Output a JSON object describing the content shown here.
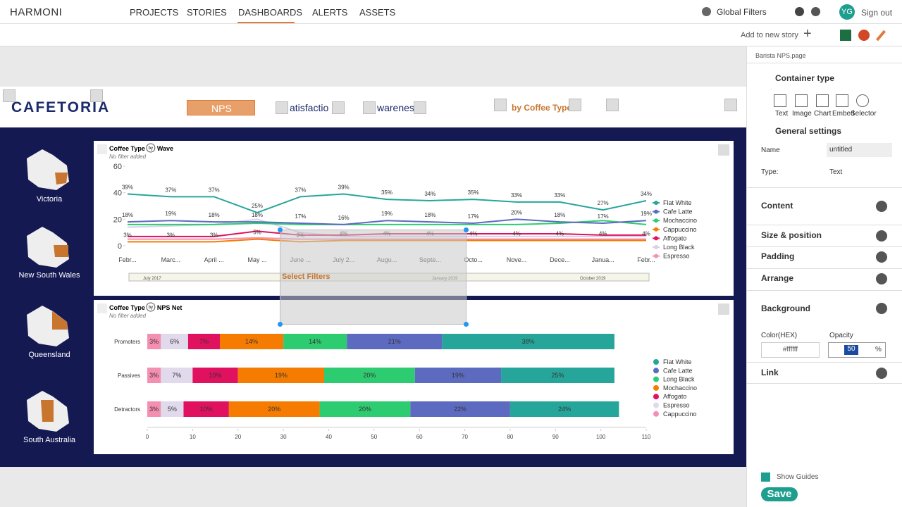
{
  "nav": {
    "brand": "HARMONI",
    "items": [
      "PROJECTS",
      "STORIES",
      "DASHBOARDS",
      "ALERTS",
      "ASSETS"
    ],
    "global_filters": "Global Filters",
    "avatar": "YG",
    "sign_out": "Sign out"
  },
  "toolbar": {
    "add_to_story": "Add to new story"
  },
  "canvas": {
    "logo": "CAFETORIA",
    "tabs": [
      "NPS",
      "atisfactio",
      "warenes",
      "by Coffee Type"
    ],
    "regions": [
      "Victoria",
      "New South Wales",
      "Queensland",
      "South Australia"
    ],
    "select_filters": "Select Filters"
  },
  "panel": {
    "file": "Barista NPS.page",
    "container_type": "Container type",
    "types": [
      "Text",
      "Image",
      "Chart",
      "Embed",
      "Selector"
    ],
    "general_settings": "General settings",
    "name_label": "Name",
    "name_value": "untitled",
    "type_label": "Type:",
    "type_value": "Text",
    "sections": [
      "Content",
      "Size & position",
      "Padding",
      "Arrange",
      "Background"
    ],
    "color_label": "Color(HEX)",
    "color_value": "#ffffff",
    "opacity_label": "Opacity",
    "opacity_value": "50",
    "opacity_unit": "%",
    "link": "Link",
    "show_guides": "Show Guides",
    "save": "Save"
  },
  "chart_data": [
    {
      "type": "line",
      "title": "Coffee Type",
      "title_by": "by",
      "title_measure": "Wave",
      "subtitle": "No filter added",
      "categories": [
        "Febr...",
        "Marc...",
        "April ...",
        "May ...",
        "June ...",
        "July 2...",
        "Augu...",
        "Septe...",
        "Octo...",
        "Nove...",
        "Dece...",
        "Janua...",
        "Febr..."
      ],
      "ylim": [
        0,
        60
      ],
      "yticks": [
        0,
        20,
        40,
        60
      ],
      "series": [
        {
          "name": "Flat White",
          "color": "#26a69a",
          "values": [
            39,
            37,
            37,
            25,
            37,
            39,
            35,
            34,
            35,
            33,
            33,
            27,
            34
          ],
          "value_labels": [
            "39%",
            "37%",
            "37%",
            "25%",
            "37%",
            "39%",
            "35%",
            "34%",
            "35%",
            "33%",
            "33%",
            "27%",
            "34%"
          ]
        },
        {
          "name": "Cafe Latte",
          "color": "#5c6bc0",
          "values": [
            18,
            19,
            18,
            18,
            17,
            16,
            19,
            18,
            17,
            20,
            18,
            17,
            19
          ],
          "value_labels": [
            "18%",
            "19%",
            "18%",
            "18%",
            "17%",
            "16%",
            "19%",
            "18%",
            "17%",
            "20%",
            "18%",
            "17%",
            "19%"
          ]
        },
        {
          "name": "Mochaccino",
          "color": "#2ecc71",
          "values": [
            16,
            16,
            16,
            17,
            16,
            16,
            16,
            16,
            16,
            16,
            17,
            19,
            16
          ]
        },
        {
          "name": "Cappuccino",
          "color": "#f57c00",
          "values": [
            3,
            3,
            3,
            5,
            3,
            4,
            4,
            4,
            4,
            4,
            4,
            4,
            4
          ],
          "value_labels": [
            "3%",
            "3%",
            "3%",
            "5%",
            "3%",
            "4%",
            "4%",
            "4%",
            "4%",
            "4%",
            "4%",
            "4%",
            "4%"
          ]
        },
        {
          "name": "Affogato",
          "color": "#e0115f",
          "values": [
            7,
            7,
            7,
            11,
            8,
            8,
            9,
            9,
            9,
            9,
            9,
            8,
            8
          ]
        },
        {
          "name": "Long Black",
          "color": "#d8d0e8",
          "values": [
            14,
            15,
            16,
            20,
            10,
            7,
            7,
            7,
            7,
            7,
            7,
            7,
            7
          ]
        },
        {
          "name": "Espresso",
          "color": "#f48fb1",
          "values": [
            5,
            5,
            5,
            6,
            5,
            5,
            5,
            5,
            5,
            5,
            5,
            5,
            5
          ]
        }
      ],
      "slider_labels": [
        "July 2017",
        "January 2019",
        "October 2019"
      ]
    },
    {
      "type": "stacked-bar-horizontal",
      "title": "Coffee Type",
      "title_by": "by",
      "title_measure": "NPS Net",
      "subtitle": "No filter added",
      "categories": [
        "Promoters",
        "Passives",
        "Detractors"
      ],
      "xlim": [
        0,
        110
      ],
      "xticks": [
        0,
        10,
        20,
        30,
        40,
        50,
        60,
        70,
        80,
        90,
        100,
        110
      ],
      "series": [
        {
          "name": "Cappuccino",
          "color": "#f48fb1",
          "values": [
            3,
            3,
            3
          ],
          "value_labels": [
            "3%",
            "3%",
            "3%"
          ]
        },
        {
          "name": "Espresso",
          "color": "#e1d9ec",
          "values": [
            6,
            7,
            5
          ],
          "value_labels": [
            "6%",
            "7%",
            "5%"
          ]
        },
        {
          "name": "Affogato",
          "color": "#e0115f",
          "values": [
            7,
            10,
            10
          ],
          "value_labels": [
            "7%",
            "10%",
            "10%"
          ]
        },
        {
          "name": "Mochaccino",
          "color": "#f57c00",
          "values": [
            14,
            19,
            20
          ],
          "value_labels": [
            "14%",
            "19%",
            "20%"
          ]
        },
        {
          "name": "Long Black",
          "color": "#2ecc71",
          "values": [
            14,
            20,
            20
          ],
          "value_labels": [
            "14%",
            "20%",
            "20%"
          ]
        },
        {
          "name": "Cafe Latte",
          "color": "#5c6bc0",
          "values": [
            21,
            19,
            22
          ],
          "value_labels": [
            "21%",
            "19%",
            "22%"
          ]
        },
        {
          "name": "Flat White",
          "color": "#26a69a",
          "values": [
            38,
            25,
            24
          ],
          "value_labels": [
            "38%",
            "25%",
            "24%"
          ]
        }
      ],
      "legend_order": [
        "Flat White",
        "Cafe Latte",
        "Long Black",
        "Mochaccino",
        "Affogato",
        "Espresso",
        "Cappuccino"
      ]
    }
  ]
}
